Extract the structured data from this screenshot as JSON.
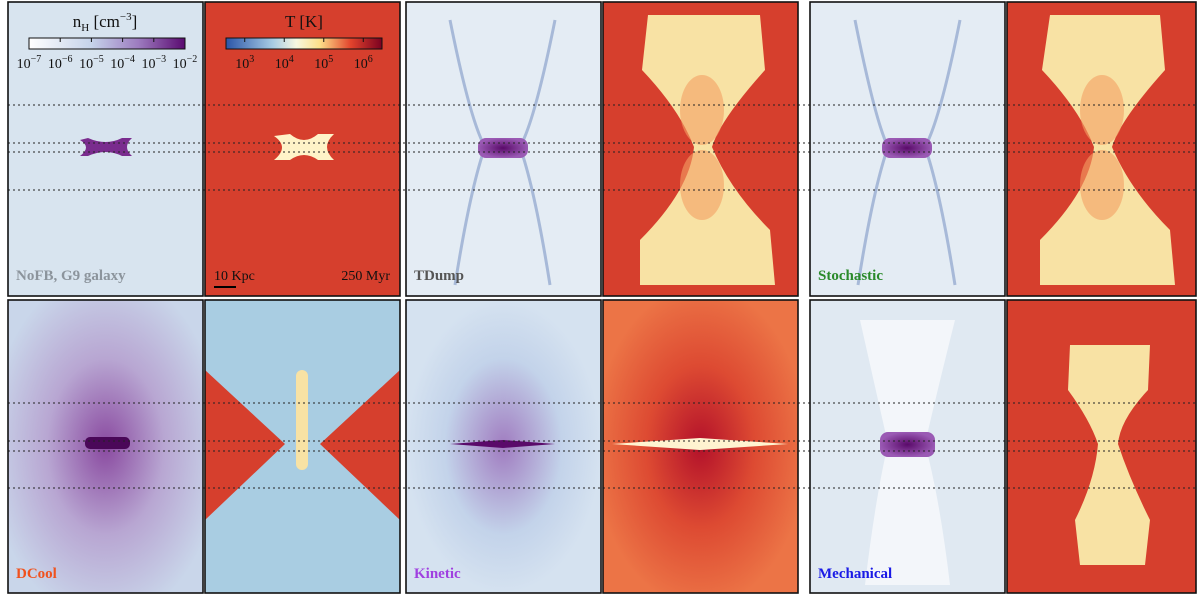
{
  "colorbars": [
    {
      "label": {
        "base": "n",
        "sub": "H",
        "unit": " [cm",
        "sup": "−3",
        "close": "]"
      },
      "ticks": [
        {
          "base": "10",
          "exp": "−7"
        },
        {
          "base": "10",
          "exp": "−6"
        },
        {
          "base": "10",
          "exp": "−5"
        },
        {
          "base": "10",
          "exp": "−4"
        },
        {
          "base": "10",
          "exp": "−3"
        },
        {
          "base": "10",
          "exp": "−2"
        }
      ]
    },
    {
      "label": {
        "text": "T [K]"
      },
      "ticks": [
        {
          "base": "10",
          "exp": "3"
        },
        {
          "base": "10",
          "exp": "4"
        },
        {
          "base": "10",
          "exp": "5"
        },
        {
          "base": "10",
          "exp": "6"
        }
      ]
    }
  ],
  "panel_labels": [
    {
      "text": "NoFB, G9 galaxy",
      "color": "#8c949c"
    },
    {
      "text": "TDump",
      "color": "#555555"
    },
    {
      "text": "Stochastic",
      "color": "#2a8a2a"
    },
    {
      "text": "DCool",
      "color": "#f0521e"
    },
    {
      "text": "Kinetic",
      "color": "#a040e0"
    },
    {
      "text": "Mechanical",
      "color": "#1a1ae6"
    }
  ],
  "scale_bar": "10 Kpc",
  "time": "250 Myr"
}
